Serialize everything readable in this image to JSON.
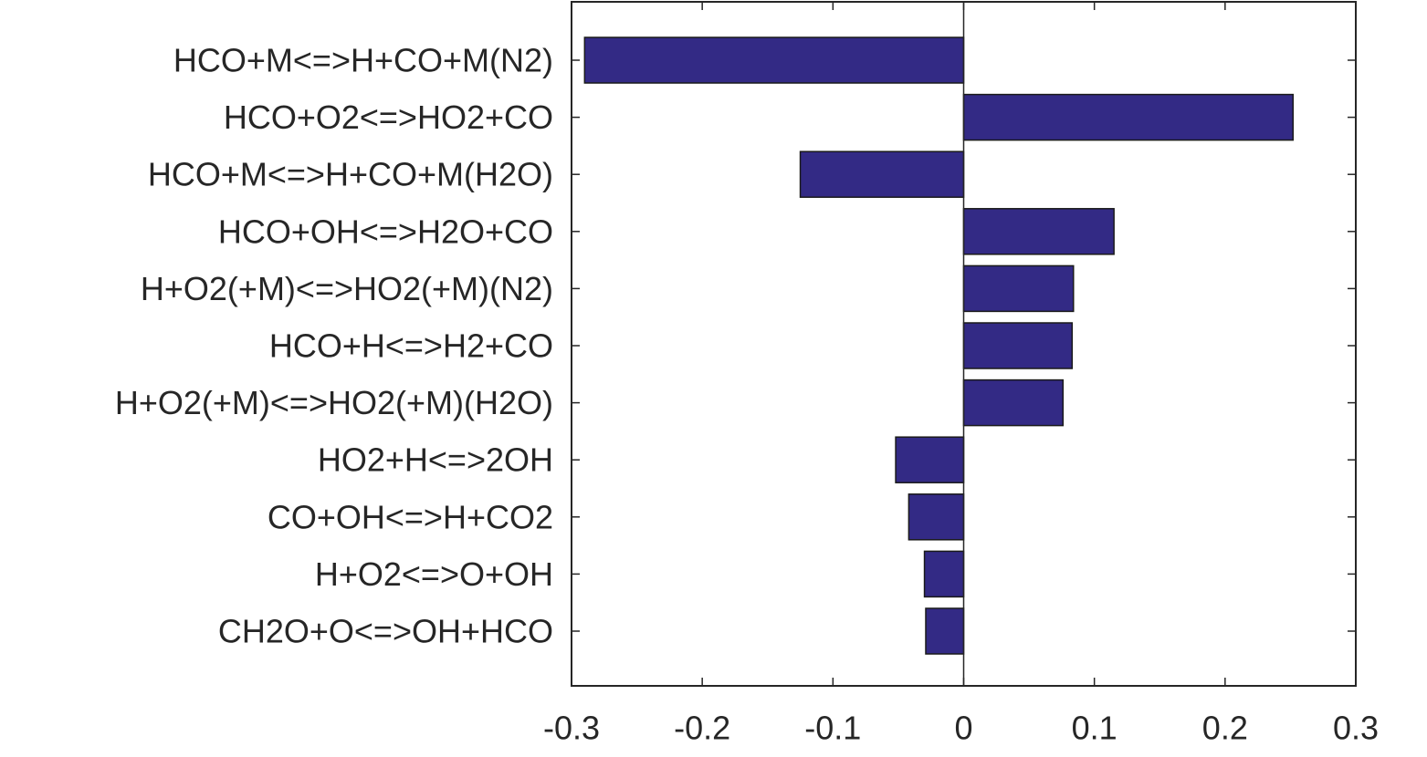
{
  "chart_data": {
    "type": "bar",
    "orientation": "horizontal",
    "title": "",
    "xlabel": "",
    "ylabel": "",
    "xlim": [
      -0.3,
      0.3
    ],
    "grid": false,
    "bar_color": "#332a85",
    "x_ticks": [
      -0.3,
      -0.2,
      -0.1,
      0,
      0.1,
      0.2,
      0.3
    ],
    "x_tick_labels": [
      "-0.3",
      "-0.2",
      "-0.1",
      "0",
      "0.1",
      "0.2",
      "0.3"
    ],
    "categories": [
      "HCO+M<=>H+CO+M(N2)",
      "HCO+O2<=>HO2+CO",
      "HCO+M<=>H+CO+M(H2O)",
      "HCO+OH<=>H2O+CO",
      "H+O2(+M)<=>HO2(+M)(N2)",
      "HCO+H<=>H2+CO",
      "H+O2(+M)<=>HO2(+M)(H2O)",
      "HO2+H<=>2OH",
      "CO+OH<=>H+CO2",
      "H+O2<=>O+OH",
      "CH2O+O<=>OH+HCO"
    ],
    "values": [
      -0.29,
      0.252,
      -0.125,
      0.115,
      0.084,
      0.083,
      0.076,
      -0.052,
      -0.042,
      -0.03,
      -0.029
    ]
  }
}
